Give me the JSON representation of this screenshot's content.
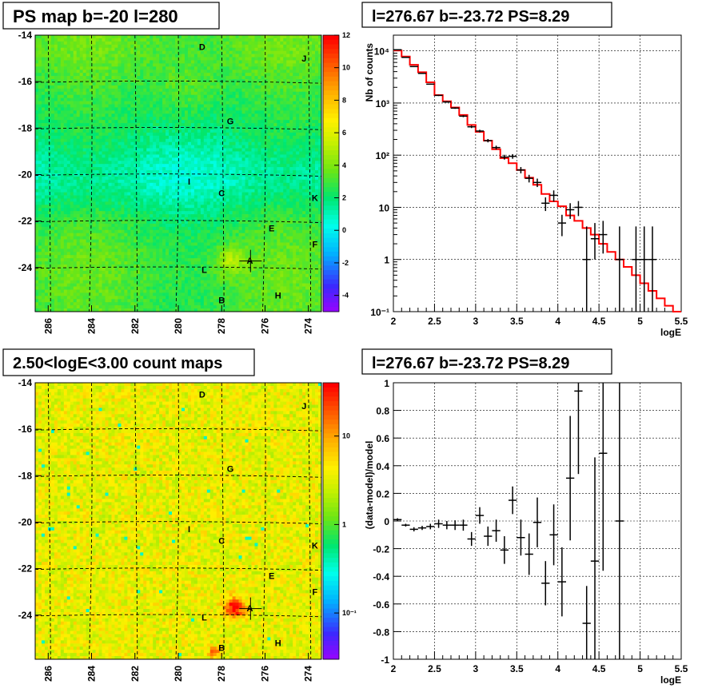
{
  "panels": {
    "ps_map_title": "PS map b=-20 l=280",
    "spectrum_title": "l=276.67 b=-23.72 PS=8.29",
    "count_map_title": "2.50<logE<3.00 count maps",
    "residual_title": "l=276.67 b=-23.72 PS=8.29"
  },
  "colors": {
    "model_line": "#ff0000",
    "data_points": "#000000",
    "grid": "#000000"
  },
  "chart_data": [
    {
      "type": "heatmap",
      "name": "ps-map",
      "title": "PS map b=-20 l=280",
      "x_ticks": [
        "286",
        "284",
        "282",
        "280",
        "278",
        "276",
        "274"
      ],
      "x_tick_values": [
        286,
        284,
        282,
        280,
        278,
        276,
        274
      ],
      "y_ticks": [
        "-14",
        "-16",
        "-18",
        "-20",
        "-22",
        "-24"
      ],
      "y_tick_values": [
        -14,
        -16,
        -18,
        -20,
        -22,
        -24
      ],
      "xlim": [
        286.6,
        273.4
      ],
      "ylim": [
        -14,
        -25.9
      ],
      "colorbar_ticks": [
        "12",
        "10",
        "8",
        "6",
        "4",
        "2",
        "0",
        "-2",
        "-4"
      ],
      "colorbar_tick_values": [
        12,
        10,
        8,
        6,
        4,
        2,
        0,
        -2,
        -4
      ],
      "colorbar_range": [
        -5,
        12
      ],
      "sources": [
        {
          "label": "D",
          "l": 278.9,
          "b": -14.5
        },
        {
          "label": "J",
          "l": 274.2,
          "b": -15.0
        },
        {
          "label": "G",
          "l": 277.6,
          "b": -17.7
        },
        {
          "label": "I",
          "l": 279.5,
          "b": -20.3
        },
        {
          "label": "C",
          "l": 278.0,
          "b": -20.8
        },
        {
          "label": "K",
          "l": 273.7,
          "b": -21.0
        },
        {
          "label": "E",
          "l": 275.7,
          "b": -22.3
        },
        {
          "label": "F",
          "l": 273.7,
          "b": -23.0
        },
        {
          "label": "A",
          "l": 276.7,
          "b": -23.7
        },
        {
          "label": "L",
          "l": 278.8,
          "b": -24.1
        },
        {
          "label": "H",
          "l": 275.4,
          "b": -25.2
        },
        {
          "label": "B",
          "l": 278.0,
          "b": -25.4
        }
      ],
      "marker": {
        "l": 276.67,
        "b": -23.72
      }
    },
    {
      "type": "line",
      "name": "spectrum",
      "title": "l=276.67 b=-23.72 PS=8.29",
      "xlabel": "logE",
      "ylabel": "Nb of counts",
      "xlim": [
        2,
        5.5
      ],
      "ylim": [
        0.1,
        20000
      ],
      "y_scale": "log",
      "x_ticks": [
        "2",
        "2.5",
        "3",
        "3.5",
        "4",
        "4.5",
        "5",
        "5.5"
      ],
      "x_tick_values": [
        2,
        2.5,
        3,
        3.5,
        4,
        4.5,
        5,
        5.5
      ],
      "y_ticks": [
        "10⁻¹",
        "1",
        "10",
        "10²",
        "10³",
        "10⁴"
      ],
      "y_tick_values": [
        0.1,
        1,
        10,
        100,
        1000,
        10000
      ],
      "grid": true,
      "data": {
        "name": "data",
        "bin_width": 0.1,
        "x": [
          2.05,
          2.15,
          2.25,
          2.35,
          2.45,
          2.55,
          2.65,
          2.75,
          2.85,
          2.95,
          3.05,
          3.15,
          3.25,
          3.35,
          3.45,
          3.55,
          3.65,
          3.75,
          3.85,
          3.95,
          4.05,
          4.15,
          4.25,
          4.35,
          4.45,
          4.55,
          4.75,
          4.95,
          5.05,
          5.15
        ],
        "y": [
          10500,
          7500,
          5000,
          3700,
          2300,
          1400,
          1050,
          800,
          560,
          350,
          290,
          190,
          140,
          92,
          95,
          52,
          36,
          30,
          12,
          17,
          5,
          9,
          10,
          1,
          2.5,
          3,
          1,
          1,
          1,
          1
        ],
        "err_lo": [
          100,
          90,
          70,
          60,
          50,
          40,
          33,
          28,
          24,
          19,
          17,
          14,
          12,
          9.6,
          9.7,
          7.2,
          6,
          5.5,
          3.5,
          4.1,
          2.2,
          3,
          3.2,
          0.9,
          1.5,
          1.7,
          0.9,
          0.9,
          0.9,
          0.9
        ],
        "err_hi": [
          100,
          90,
          70,
          60,
          50,
          40,
          33,
          28,
          24,
          19,
          17,
          14,
          12,
          9.6,
          9.7,
          7.2,
          6,
          5.5,
          3.5,
          4.1,
          2.2,
          3,
          3.2,
          3.3,
          2.5,
          2.5,
          3.3,
          3.3,
          3.3,
          3.3
        ]
      },
      "model": {
        "name": "model",
        "bin_edges": [
          2.0,
          2.1,
          2.2,
          2.3,
          2.4,
          2.5,
          2.6,
          2.7,
          2.8,
          2.9,
          3.0,
          3.1,
          3.2,
          3.3,
          3.4,
          3.5,
          3.6,
          3.7,
          3.8,
          3.9,
          4.0,
          4.1,
          4.2,
          4.3,
          4.4,
          4.5,
          4.6,
          4.7,
          4.8,
          4.9,
          5.0,
          5.1,
          5.2,
          5.3,
          5.4,
          5.5
        ],
        "values": [
          10200,
          7800,
          5400,
          3900,
          2500,
          1420,
          1080,
          820,
          590,
          380,
          280,
          190,
          130,
          88,
          70,
          52,
          37,
          27,
          18,
          13,
          10.5,
          7,
          5.5,
          4,
          3,
          2,
          1.4,
          1,
          0.72,
          0.5,
          0.35,
          0.25,
          0.18,
          0.13,
          0.1
        ]
      }
    },
    {
      "type": "heatmap",
      "name": "count-map",
      "title": "2.50<logE<3.00 count maps",
      "x_ticks": [
        "286",
        "284",
        "282",
        "280",
        "278",
        "276",
        "274"
      ],
      "x_tick_values": [
        286,
        284,
        282,
        280,
        278,
        276,
        274
      ],
      "y_ticks": [
        "-14",
        "-16",
        "-18",
        "-20",
        "-22",
        "-24"
      ],
      "y_tick_values": [
        -14,
        -16,
        -18,
        -20,
        -22,
        -24
      ],
      "xlim": [
        286.6,
        273.4
      ],
      "ylim": [
        -14,
        -25.9
      ],
      "colorbar_ticks": [
        "10",
        "1",
        "10⁻¹"
      ],
      "colorbar_tick_values": [
        10,
        1,
        0.1
      ],
      "colorbar_scale": "log",
      "sources": [
        {
          "label": "D",
          "l": 278.9,
          "b": -14.5
        },
        {
          "label": "J",
          "l": 274.2,
          "b": -15.0
        },
        {
          "label": "G",
          "l": 277.6,
          "b": -17.7
        },
        {
          "label": "I",
          "l": 279.5,
          "b": -20.3
        },
        {
          "label": "C",
          "l": 278.0,
          "b": -20.8
        },
        {
          "label": "K",
          "l": 273.7,
          "b": -21.0
        },
        {
          "label": "E",
          "l": 275.7,
          "b": -22.3
        },
        {
          "label": "F",
          "l": 273.7,
          "b": -23.0
        },
        {
          "label": "A",
          "l": 276.7,
          "b": -23.7
        },
        {
          "label": "L",
          "l": 278.8,
          "b": -24.1
        },
        {
          "label": "H",
          "l": 275.4,
          "b": -25.2
        },
        {
          "label": "B",
          "l": 278.0,
          "b": -25.4
        }
      ],
      "marker": {
        "l": 276.67,
        "b": -23.72
      }
    },
    {
      "type": "scatter",
      "name": "residuals",
      "title": "l=276.67 b=-23.72 PS=8.29",
      "xlabel": "logE",
      "ylabel": "(data-model)/model",
      "xlim": [
        2,
        5.5
      ],
      "ylim": [
        -1,
        1
      ],
      "x_ticks": [
        "2",
        "2.5",
        "3",
        "3.5",
        "4",
        "4.5",
        "5",
        "5.5"
      ],
      "x_tick_values": [
        2,
        2.5,
        3,
        3.5,
        4,
        4.5,
        5,
        5.5
      ],
      "y_ticks": [
        "-1",
        "-0.8",
        "-0.6",
        "-0.4",
        "-0.2",
        "0",
        "0.2",
        "0.4",
        "0.6",
        "0.8",
        "1"
      ],
      "y_tick_values": [
        -1,
        -0.8,
        -0.6,
        -0.4,
        -0.2,
        0,
        0.2,
        0.4,
        0.6,
        0.8,
        1
      ],
      "grid": true,
      "bin_width": 0.1,
      "x": [
        2.05,
        2.15,
        2.25,
        2.35,
        2.45,
        2.55,
        2.65,
        2.75,
        2.85,
        2.95,
        3.05,
        3.15,
        3.25,
        3.35,
        3.45,
        3.55,
        3.65,
        3.75,
        3.85,
        3.95,
        4.05,
        4.15,
        4.25,
        4.35,
        4.45,
        4.55,
        4.75
      ],
      "y": [
        0.01,
        -0.03,
        -0.06,
        -0.05,
        -0.04,
        -0.02,
        -0.03,
        -0.03,
        -0.03,
        -0.13,
        0.04,
        -0.11,
        -0.07,
        -0.21,
        0.15,
        -0.12,
        -0.24,
        -0.01,
        -0.45,
        -0.1,
        -0.44,
        0.31,
        0.94,
        -0.74,
        -0.29,
        0.49,
        0
      ],
      "err": [
        0.01,
        0.01,
        0.015,
        0.015,
        0.02,
        0.03,
        0.03,
        0.035,
        0.04,
        0.05,
        0.06,
        0.07,
        0.08,
        0.1,
        0.1,
        0.13,
        0.15,
        0.18,
        0.16,
        0.22,
        0.25,
        0.45,
        0.6,
        0.27,
        0.75,
        0.85,
        1
      ]
    }
  ]
}
